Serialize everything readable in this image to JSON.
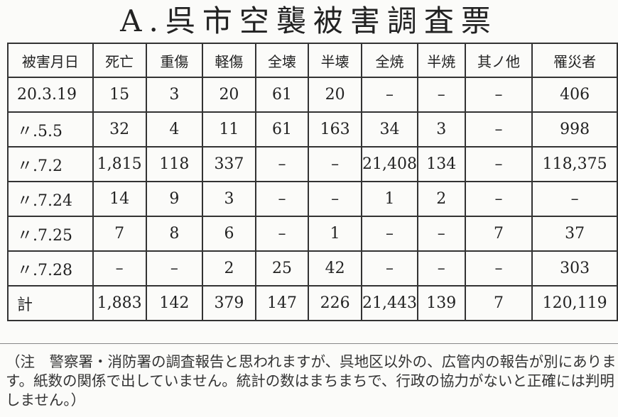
{
  "title": "A.呉市空襲被害調査票",
  "table": {
    "headers": [
      "被害月日",
      "死亡",
      "重傷",
      "軽傷",
      "全壊",
      "半壊",
      "全焼",
      "半焼",
      "其ノ他",
      "罹災者"
    ],
    "rows": [
      [
        "20.3.19",
        "15",
        "3",
        "20",
        "61",
        "20",
        "–",
        "–",
        "–",
        "406"
      ],
      [
        "〃.5.5",
        "32",
        "4",
        "11",
        "61",
        "163",
        "34",
        "3",
        "–",
        "998"
      ],
      [
        "〃.7.2",
        "1,815",
        "118",
        "337",
        "–",
        "–",
        "21,408",
        "134",
        "–",
        "118,375"
      ],
      [
        "〃.7.24",
        "14",
        "9",
        "3",
        "–",
        "–",
        "1",
        "2",
        "–",
        "–"
      ],
      [
        "〃.7.25",
        "7",
        "8",
        "6",
        "–",
        "1",
        "–",
        "–",
        "7",
        "37"
      ],
      [
        "〃.7.28",
        "–",
        "–",
        "2",
        "25",
        "42",
        "–",
        "–",
        "–",
        "303"
      ],
      [
        "計",
        "1,883",
        "142",
        "379",
        "147",
        "226",
        "21,443",
        "139",
        "7",
        "120,119"
      ]
    ]
  },
  "note": "（注　警察署・消防署の調査報告と思われますが、呉地区以外の、広管内の報告が別にあります。紙数の関係で出していません。統計の数はまちまちで、行政の協力がないと正確には判明しません。）"
}
